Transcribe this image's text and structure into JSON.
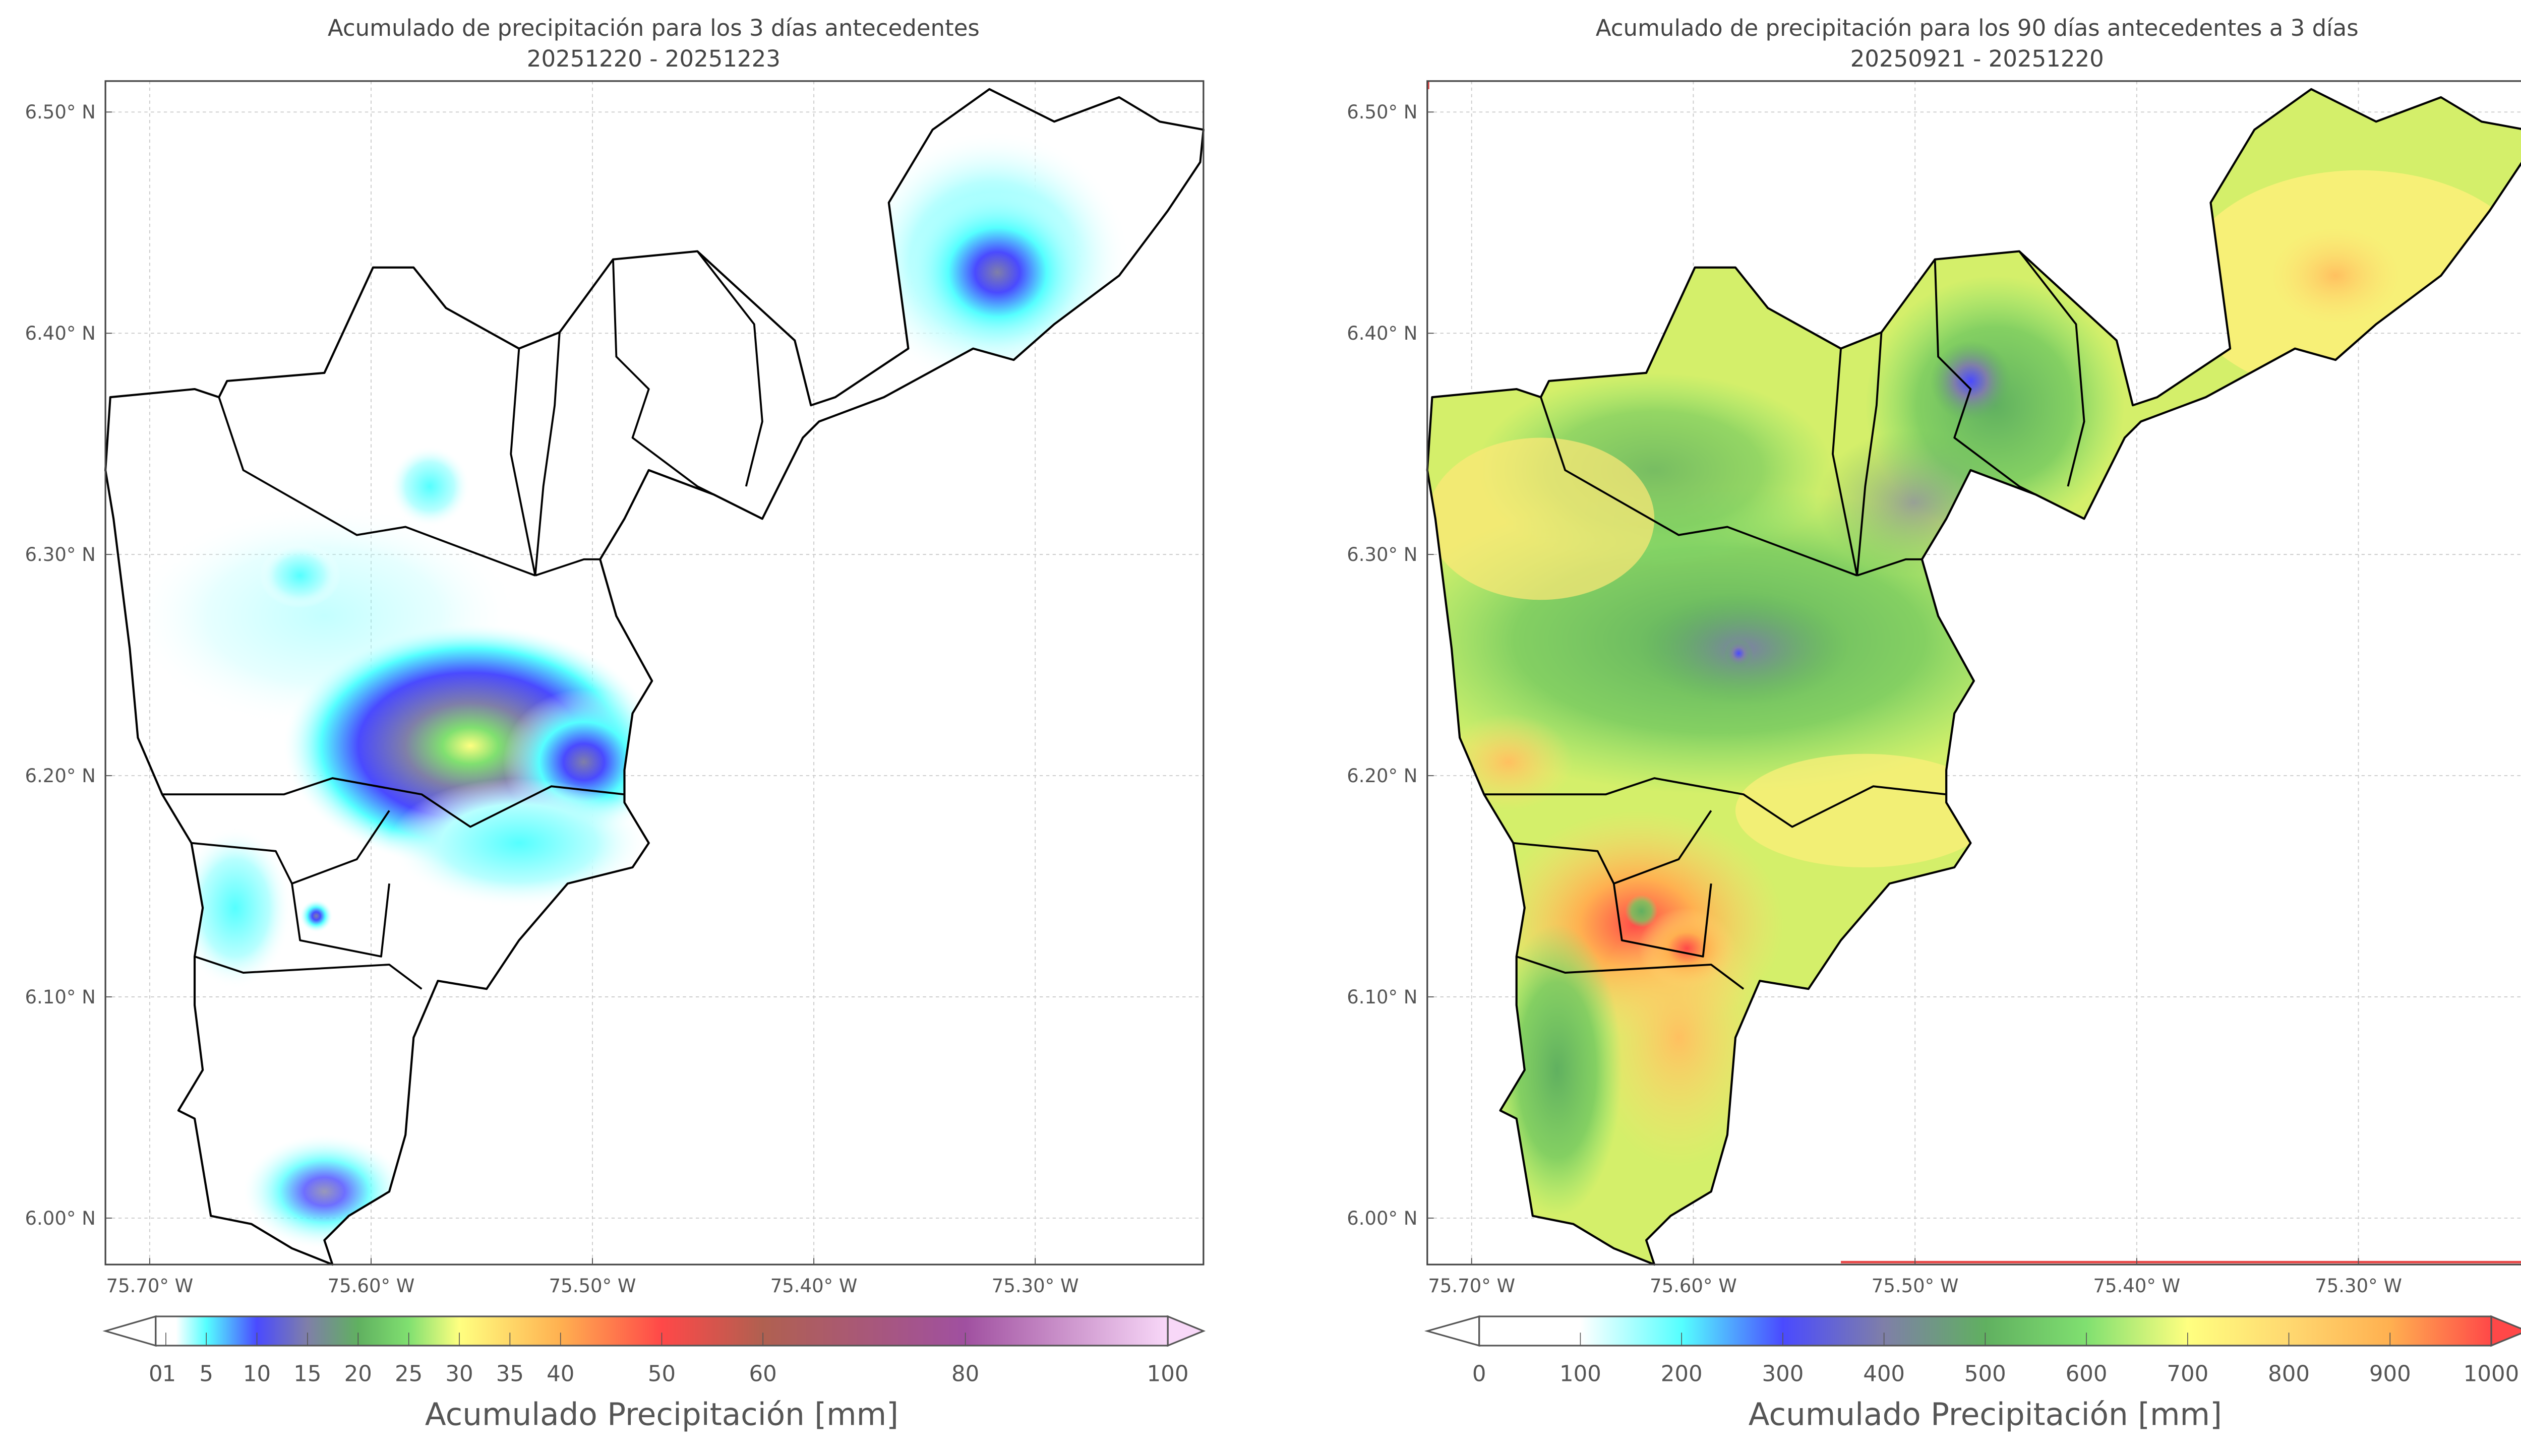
{
  "chart_data": [
    {
      "type": "heatmap",
      "title": "Acumulado de precipitación para los 3 días antecedentes",
      "subtitle": "20251220 - 20251223",
      "xlabel": "",
      "ylabel": "",
      "xlim": [
        -75.72,
        -75.224
      ],
      "ylim": [
        5.979,
        6.514
      ],
      "x_ticks": [
        "75.70° W",
        "75.60° W",
        "75.50° W",
        "75.40° W",
        "75.30° W"
      ],
      "x_tick_values": [
        -75.7,
        -75.6,
        -75.5,
        -75.4,
        -75.3
      ],
      "y_ticks": [
        "6.50° N",
        "6.40° N",
        "6.30° N",
        "6.20° N",
        "6.10° N",
        "6.00° N"
      ],
      "y_tick_values": [
        6.5,
        6.4,
        6.3,
        6.2,
        6.1,
        6.0
      ],
      "grid": true,
      "colorbar": {
        "label": "Acumulado Precipitación [mm]",
        "range": [
          0,
          100
        ],
        "ticks": [
          0,
          1,
          5,
          10,
          15,
          20,
          25,
          30,
          35,
          40,
          50,
          60,
          80,
          100
        ],
        "tick_labels": [
          "0",
          "1",
          "5",
          "10",
          "15",
          "20",
          "25",
          "30",
          "35",
          "40",
          "50",
          "60",
          "80",
          "100"
        ],
        "stops": [
          [
            0,
            "#ffffff"
          ],
          [
            2,
            "#ffffff"
          ],
          [
            5,
            "#55ffff"
          ],
          [
            10,
            "#4a4aff"
          ],
          [
            15,
            "#7f7fa8"
          ],
          [
            20,
            "#60b060"
          ],
          [
            25,
            "#80e070"
          ],
          [
            30,
            "#ffff80"
          ],
          [
            40,
            "#ffb050"
          ],
          [
            50,
            "#ff4848"
          ],
          [
            60,
            "#b06050"
          ],
          [
            80,
            "#a050a0"
          ],
          [
            100,
            "#f8d8f8"
          ]
        ],
        "extend_max_color": "#f8d8f8",
        "extend_min_color": "#ffffff",
        "placement": "bottom"
      },
      "hotspots": [
        {
          "lon": -75.318,
          "lat": 6.427,
          "value_mm": 12
        },
        {
          "lon": -75.565,
          "lat": 6.208,
          "value_mm": 28
        },
        {
          "lon": -75.49,
          "lat": 6.205,
          "value_mm": 20
        },
        {
          "lon": -75.625,
          "lat": 6.007,
          "value_mm": 8
        }
      ]
    },
    {
      "type": "heatmap",
      "title": "Acumulado de precipitación para los 90 días antecedentes a 3 días",
      "subtitle": "20250921 - 20251220",
      "xlabel": "",
      "ylabel": "",
      "xlim": [
        -75.72,
        -75.224
      ],
      "ylim": [
        5.979,
        6.514
      ],
      "x_ticks": [
        "75.70° W",
        "75.60° W",
        "75.50° W",
        "75.40° W",
        "75.30° W"
      ],
      "x_tick_values": [
        -75.7,
        -75.6,
        -75.5,
        -75.4,
        -75.3
      ],
      "y_ticks": [
        "6.50° N",
        "6.40° N",
        "6.30° N",
        "6.20° N",
        "6.10° N",
        "6.00° N"
      ],
      "y_tick_values": [
        6.5,
        6.4,
        6.3,
        6.2,
        6.1,
        6.0
      ],
      "grid": true,
      "colorbar": {
        "label": "Acumulado Precipitación [mm]",
        "range": [
          0,
          1000
        ],
        "ticks": [
          0,
          100,
          200,
          300,
          400,
          500,
          600,
          700,
          800,
          900,
          1000
        ],
        "tick_labels": [
          "0",
          "100",
          "200",
          "300",
          "400",
          "500",
          "600",
          "700",
          "800",
          "900",
          "1000"
        ],
        "stops": [
          [
            0,
            "#ffffff"
          ],
          [
            100,
            "#ffffff"
          ],
          [
            200,
            "#55ffff"
          ],
          [
            300,
            "#4a4aff"
          ],
          [
            400,
            "#7f7fa8"
          ],
          [
            500,
            "#60b060"
          ],
          [
            600,
            "#80e070"
          ],
          [
            700,
            "#ffff80"
          ],
          [
            800,
            "#ffd870"
          ],
          [
            900,
            "#ffb050"
          ],
          [
            1000,
            "#ff4848"
          ]
        ],
        "extend_max_color": "#ff4848",
        "extend_min_color": "#ffffff",
        "placement": "bottom"
      },
      "hotspots": [
        {
          "lon": -75.48,
          "lat": 6.377,
          "value_mm": 320
        },
        {
          "lon": -75.56,
          "lat": 6.255,
          "value_mm": 400
        },
        {
          "lon": -75.6,
          "lat": 6.12,
          "value_mm": 980
        },
        {
          "lon": -75.32,
          "lat": 6.425,
          "value_mm": 780
        }
      ]
    }
  ]
}
